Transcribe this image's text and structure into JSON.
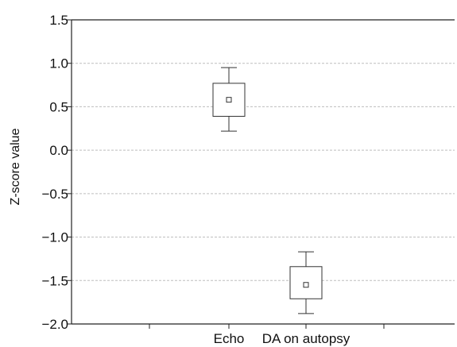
{
  "chart_data": {
    "type": "box",
    "title": "",
    "xlabel": "",
    "ylabel": "Z-score value",
    "ylim": [
      -2.0,
      1.5
    ],
    "yticks": [
      "1.5",
      "1.0",
      "0.5",
      "0.0",
      "−0.5",
      "−1.0",
      "−1.5",
      "−2.0"
    ],
    "ytick_values": [
      1.5,
      1.0,
      0.5,
      0.0,
      -0.5,
      -1.0,
      -1.5,
      -2.0
    ],
    "grid": "horizontal dashed",
    "categories": [
      "Echo",
      "DA on autopsy"
    ],
    "boxes": [
      {
        "category": "Echo",
        "whisker_low": 0.22,
        "q1": 0.39,
        "median": 0.58,
        "q3": 0.77,
        "whisker_high": 0.95
      },
      {
        "category": "DA on autopsy",
        "whisker_low": -1.88,
        "q1": -1.71,
        "median": -1.55,
        "q3": -1.34,
        "whisker_high": -1.17
      }
    ]
  }
}
